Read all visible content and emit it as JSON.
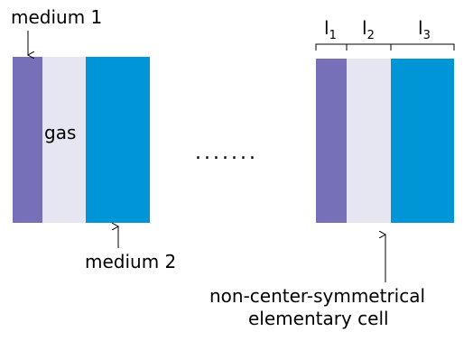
{
  "colors": {
    "medium1": "#7570b8",
    "gas": "#e6e6f2",
    "medium2": "#0095d6",
    "ink": "#000000"
  },
  "labels": {
    "medium1": "medium 1",
    "gas": "gas",
    "medium2": "medium 2",
    "ellipsis": ".......",
    "l1_base": "l",
    "l1_sub": "1",
    "l2_base": "l",
    "l2_sub": "2",
    "l3_base": "l",
    "l3_sub": "3",
    "cell_line1": "non-center-symmetrical",
    "cell_line2": "elementary cell"
  }
}
